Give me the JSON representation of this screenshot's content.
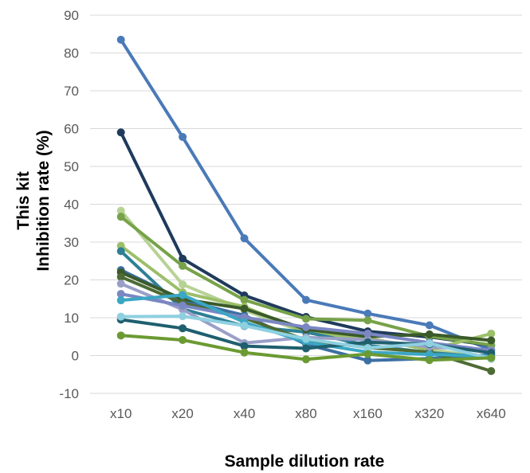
{
  "chart_data": {
    "type": "line",
    "title": "",
    "xlabel": "Sample dilution rate",
    "ylabel_lines": [
      "This kit",
      "Inhibition rate (%)"
    ],
    "categories": [
      "x10",
      "x20",
      "x40",
      "x80",
      "x160",
      "x320",
      "x640"
    ],
    "ylim": [
      -10,
      90
    ],
    "yticks": [
      -10,
      0,
      10,
      20,
      30,
      40,
      50,
      60,
      70,
      80,
      90
    ],
    "grid": true,
    "legend": "none",
    "series": [
      {
        "color": "#4a7ab8",
        "values": [
          83.5,
          57.8,
          31.0,
          14.7,
          11.1,
          8.0,
          1.5
        ]
      },
      {
        "color": "#1f3a5c",
        "values": [
          59.0,
          25.6,
          15.9,
          10.2,
          6.4,
          4.9,
          2.7
        ]
      },
      {
        "color": "#b7d295",
        "values": [
          38.3,
          18.8,
          12.0,
          6.0,
          4.3,
          1.7,
          -0.9
        ]
      },
      {
        "color": "#77a249",
        "values": [
          36.7,
          23.7,
          14.7,
          9.7,
          9.3,
          5.1,
          2.8
        ]
      },
      {
        "color": "#9cbf6a",
        "values": [
          29.0,
          16.7,
          12.9,
          6.2,
          4.6,
          1.5,
          5.8
        ]
      },
      {
        "color": "#2e7f96",
        "values": [
          27.6,
          12.3,
          7.8,
          6.2,
          2.7,
          0.8,
          -0.5
        ]
      },
      {
        "color": "#3d6fa3",
        "values": [
          22.6,
          14.7,
          10.6,
          3.0,
          -1.3,
          -0.8,
          0.2
        ]
      },
      {
        "color": "#3a5a2a",
        "values": [
          22.0,
          14.9,
          12.4,
          6.9,
          5.0,
          5.6,
          4.0
        ]
      },
      {
        "color": "#4d6b34",
        "values": [
          20.8,
          13.9,
          9.9,
          4.1,
          2.1,
          0.9,
          -4.1
        ]
      },
      {
        "color": "#9a9fc8",
        "values": [
          19.0,
          12.2,
          3.3,
          4.8,
          4.2,
          2.3,
          1.4
        ]
      },
      {
        "color": "#7a87c3",
        "values": [
          16.3,
          13.2,
          10.1,
          7.5,
          5.8,
          3.4,
          1.3
        ]
      },
      {
        "color": "#3aa7c4",
        "values": [
          14.6,
          16.0,
          8.8,
          3.5,
          0.9,
          0.3,
          -0.2
        ]
      },
      {
        "color": "#1f5f6e",
        "values": [
          9.5,
          7.2,
          2.5,
          1.9,
          3.5,
          3.0,
          0.7
        ]
      },
      {
        "color": "#8fd0e0",
        "values": [
          10.3,
          10.4,
          7.9,
          4.4,
          2.0,
          3.2,
          -0.8
        ]
      },
      {
        "color": "#6b9a32",
        "values": [
          5.3,
          4.1,
          0.8,
          -1.0,
          0.4,
          -1.2,
          -0.6
        ]
      }
    ]
  }
}
